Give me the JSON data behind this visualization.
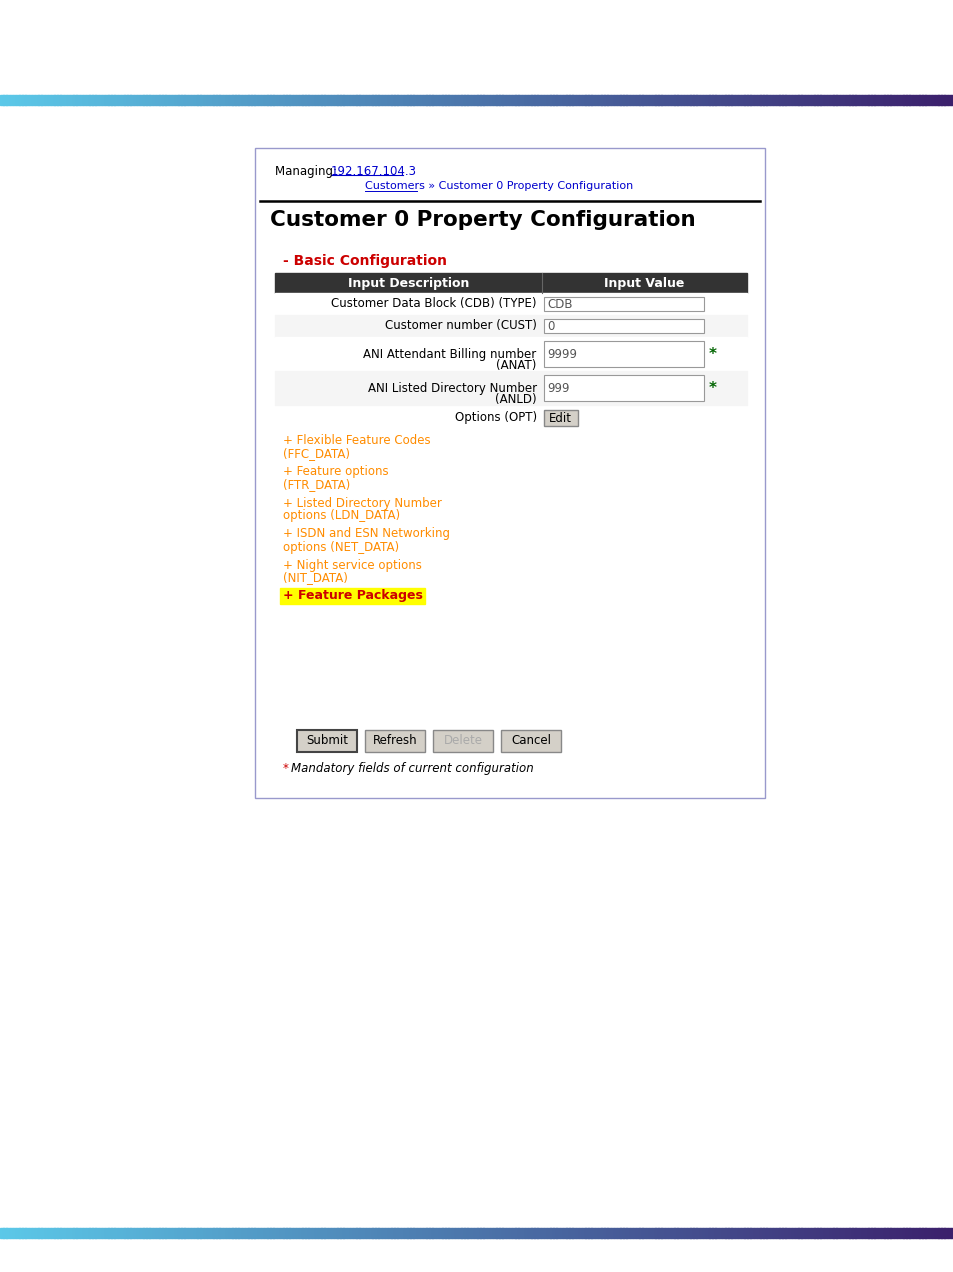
{
  "bg_color": "#ffffff",
  "top_bar_color_left": "#5bc8e8",
  "top_bar_color_right": "#3b1f6b",
  "bottom_bar_color_left": "#5bc8e8",
  "bottom_bar_color_right": "#3b1f6b",
  "managing_label": "Managing: ",
  "managing_ip": "192.167.104.3",
  "breadcrumb": "Customers » Customer 0 Property Configuration",
  "page_title": "Customer 0 Property Configuration",
  "section_title": "- Basic Configuration",
  "section_title_color": "#cc0000",
  "table_header_bg": "#333333",
  "table_header_text_color": "#ffffff",
  "col1_header": "Input Description",
  "col2_header": "Input Value",
  "rows": [
    {
      "label": "Customer Data Block (CDB) (TYPE)",
      "value": "CDB",
      "mandatory": false,
      "multiline": false
    },
    {
      "label": "Customer number (CUST)",
      "value": "0",
      "mandatory": false,
      "multiline": false
    },
    {
      "label": "ANI Attendant Billing number\n(ANAT)",
      "value": "9999",
      "mandatory": true,
      "multiline": true
    },
    {
      "label": "ANI Listed Directory Number\n(ANLD)",
      "value": "999",
      "mandatory": true,
      "multiline": true
    }
  ],
  "options_label": "Options (OPT)",
  "edit_button": "Edit",
  "expandable_links": [
    {
      "line1": "+ Flexible Feature Codes",
      "line2": "(FFC_DATA)",
      "color": "#ff8c00",
      "bold": false,
      "highlight": null
    },
    {
      "line1": "+ Feature options",
      "line2": "(FTR_DATA)",
      "color": "#ff8c00",
      "bold": false,
      "highlight": null
    },
    {
      "line1": "+ Listed Directory Number",
      "line2": "options (LDN_DATA)",
      "color": "#ff8c00",
      "bold": false,
      "highlight": null
    },
    {
      "line1": "+ ISDN and ESN Networking",
      "line2": "options (NET_DATA)",
      "color": "#ff8c00",
      "bold": false,
      "highlight": null
    },
    {
      "line1": "+ Night service options",
      "line2": "(NIT_DATA)",
      "color": "#ff8c00",
      "bold": false,
      "highlight": null
    },
    {
      "line1": "+ Feature Packages",
      "line2": null,
      "color": "#cc0000",
      "bold": true,
      "highlight": "#ffff00"
    }
  ],
  "buttons": [
    "Submit",
    "Refresh",
    "Delete",
    "Cancel"
  ],
  "mandatory_note": "Mandatory fields of current configuration",
  "mandatory_star_color": "#cc0000",
  "mandatory_green": "#006400",
  "link_color": "#0000cc",
  "text_color": "#000000",
  "input_bg": "#ffffff",
  "input_border": "#999999",
  "divider_color": "#000000",
  "panel_border_color": "#9999cc"
}
